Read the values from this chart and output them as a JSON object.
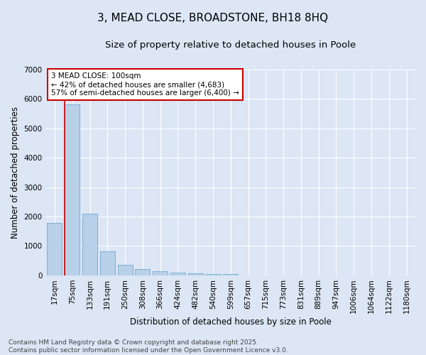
{
  "title": "3, MEAD CLOSE, BROADSTONE, BH18 8HQ",
  "subtitle": "Size of property relative to detached houses in Poole",
  "xlabel": "Distribution of detached houses by size in Poole",
  "ylabel": "Number of detached properties",
  "categories": [
    "17sqm",
    "75sqm",
    "133sqm",
    "191sqm",
    "250sqm",
    "308sqm",
    "366sqm",
    "424sqm",
    "482sqm",
    "540sqm",
    "599sqm",
    "657sqm",
    "715sqm",
    "773sqm",
    "831sqm",
    "889sqm",
    "947sqm",
    "1006sqm",
    "1064sqm",
    "1122sqm",
    "1180sqm"
  ],
  "values": [
    1780,
    5820,
    2090,
    820,
    370,
    210,
    130,
    90,
    75,
    50,
    55,
    0,
    0,
    0,
    0,
    0,
    0,
    0,
    0,
    0,
    0
  ],
  "bar_color": "#b8d0e8",
  "bar_edge_color": "#6faad4",
  "vline_x": 1.5,
  "vline_color": "#cc0000",
  "annotation_text": "3 MEAD CLOSE: 100sqm\n← 42% of detached houses are smaller (4,683)\n57% of semi-detached houses are larger (6,400) →",
  "annotation_box_facecolor": "#ffffff",
  "annotation_box_edgecolor": "#cc0000",
  "bg_color": "#dce6f5",
  "plot_bg_color": "#dce6f5",
  "ylim": [
    0,
    7000
  ],
  "yticks": [
    0,
    1000,
    2000,
    3000,
    4000,
    5000,
    6000,
    7000
  ],
  "footer": "Contains HM Land Registry data © Crown copyright and database right 2025.\nContains public sector information licensed under the Open Government Licence v3.0.",
  "title_fontsize": 11,
  "subtitle_fontsize": 9.5,
  "axis_label_fontsize": 8.5,
  "tick_fontsize": 7.5,
  "annotation_fontsize": 7.5,
  "footer_fontsize": 6.5
}
